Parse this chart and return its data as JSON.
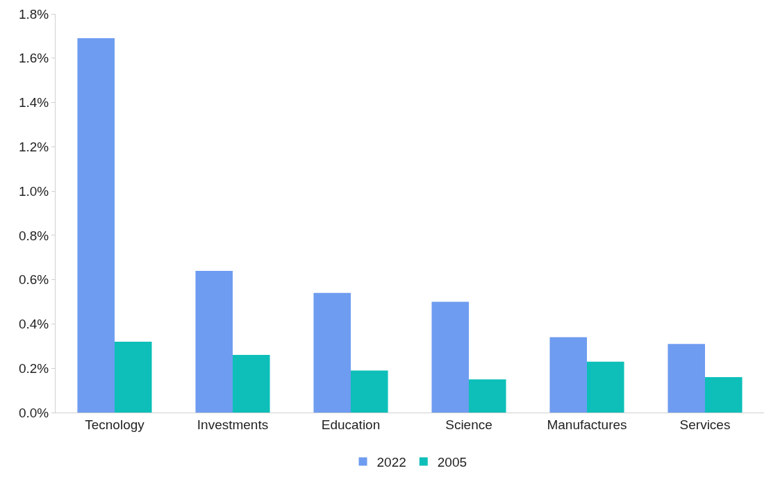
{
  "chart_data": {
    "type": "bar",
    "categories": [
      "Tecnology",
      "Investments",
      "Education",
      "Science",
      "Manufactures",
      "Services"
    ],
    "series": [
      {
        "name": "2022",
        "color": "#6e9cf0",
        "values": [
          1.69,
          0.64,
          0.54,
          0.5,
          0.34,
          0.31
        ]
      },
      {
        "name": "2005",
        "color": "#0dbfb8",
        "values": [
          0.32,
          0.26,
          0.19,
          0.15,
          0.23,
          0.16
        ]
      }
    ],
    "ylim": [
      0,
      1.8
    ],
    "yticks": [
      {
        "value": 0,
        "label": "0.0%"
      },
      {
        "value": 0.2,
        "label": "0.2%"
      },
      {
        "value": 0.4,
        "label": "0.4%"
      },
      {
        "value": 0.6,
        "label": "0.6%"
      },
      {
        "value": 0.8,
        "label": "0.8%"
      },
      {
        "value": 1.0,
        "label": "1.0%"
      },
      {
        "value": 1.2,
        "label": "1.2%"
      },
      {
        "value": 1.4,
        "label": "1.4%"
      },
      {
        "value": 1.6,
        "label": "1.6%"
      },
      {
        "value": 1.8,
        "label": "1.8%"
      }
    ],
    "legend": "bottom"
  }
}
